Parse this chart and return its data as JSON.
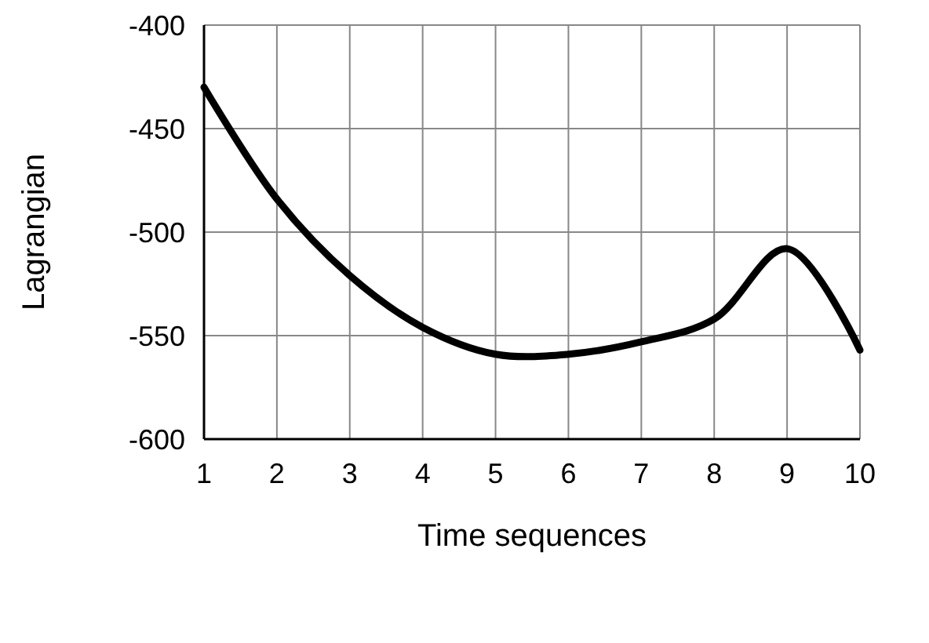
{
  "chart_data": {
    "type": "line",
    "xlabel": "Time sequences",
    "ylabel": "Lagrangian",
    "x": [
      1,
      2,
      3,
      4,
      5,
      6,
      7,
      8,
      9,
      10
    ],
    "series": [
      {
        "color": "#000000",
        "values": [
          -430,
          -484,
          -521,
          -546,
          -559,
          -559,
          -553,
          -542,
          -508,
          -557
        ]
      }
    ],
    "xlim": [
      1,
      10
    ],
    "xticks": [
      1,
      2,
      3,
      4,
      5,
      6,
      7,
      8,
      9,
      10
    ],
    "ylim": [
      -600,
      -400
    ],
    "yticks": [
      -600,
      -550,
      -500,
      -450,
      -400
    ],
    "grid": true,
    "marker": "none",
    "line_style": "solid"
  }
}
